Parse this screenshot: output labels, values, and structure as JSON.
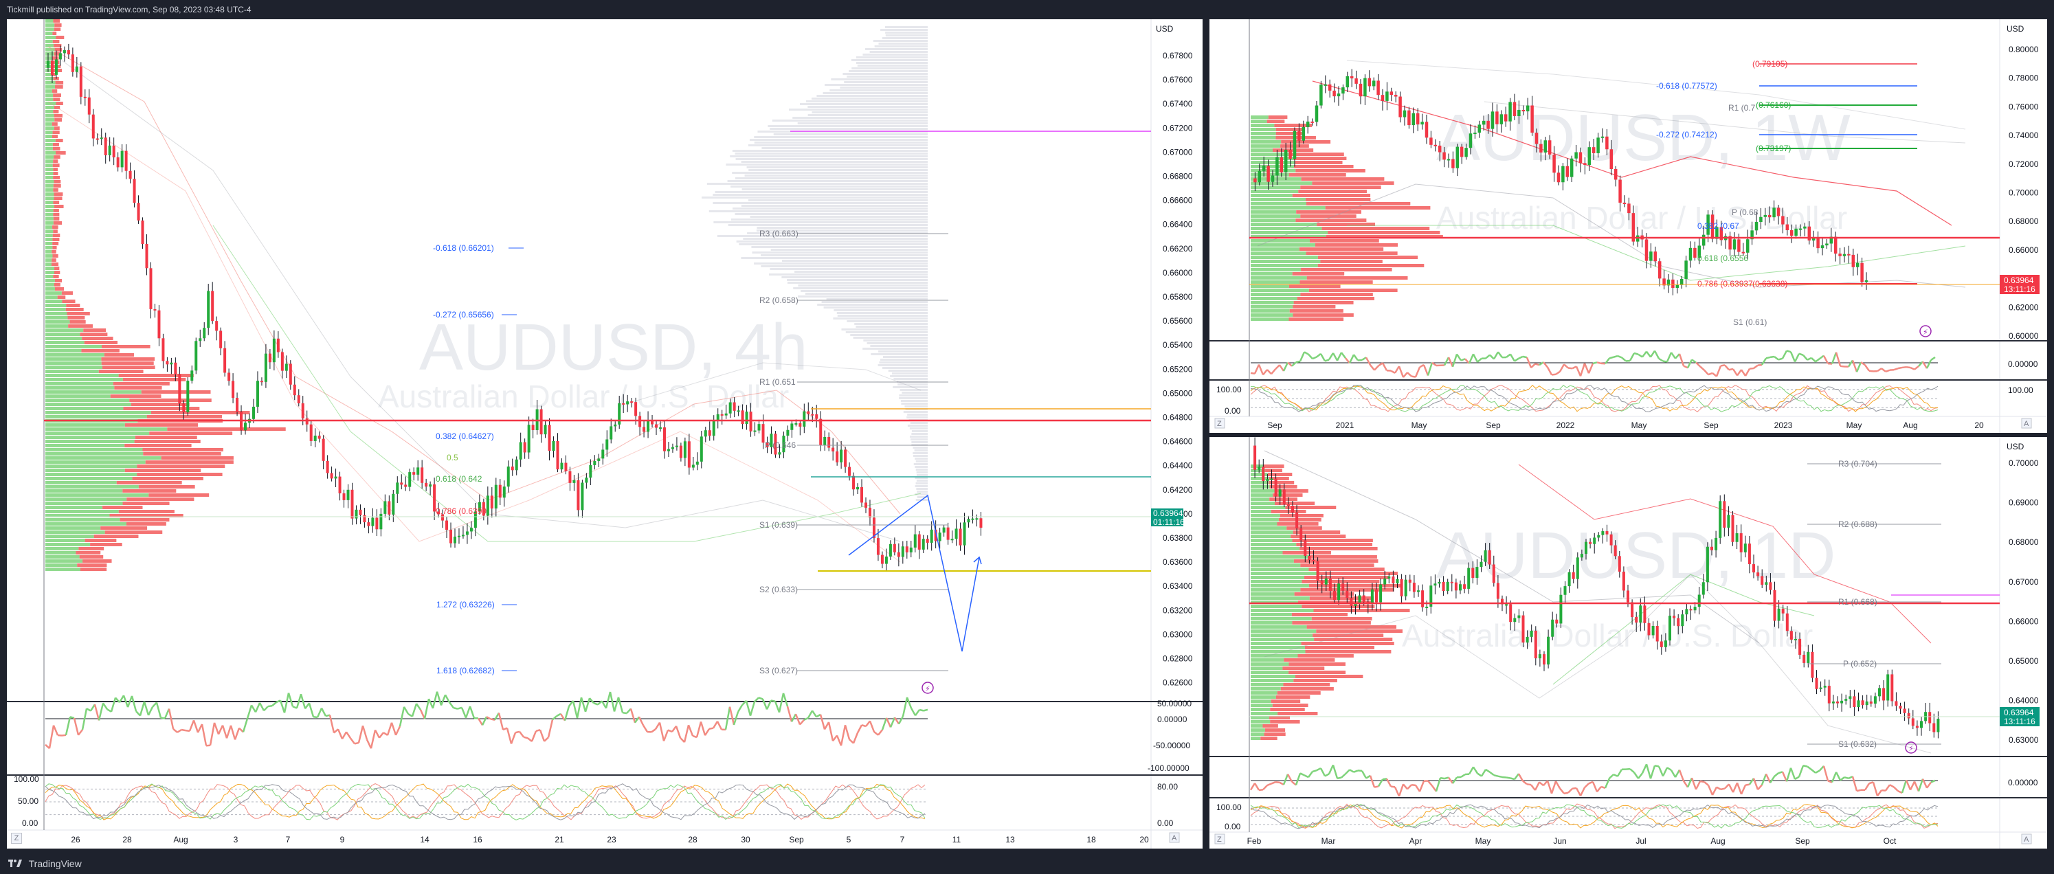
{
  "header": {
    "text": "Tickmill published on TradingView.com, Sep 08, 2023 03:48 UTC-4"
  },
  "footer": {
    "brand": "TradingView"
  },
  "colors": {
    "bull": "#089981",
    "bullBright": "#22ab3a",
    "bear": "#f23645",
    "profileGreen": "#7ed37a",
    "profileRed": "#f25a5a",
    "fibBlue": "#2962ff",
    "pivotGray": "#9598a1",
    "magenta": "#e040fb",
    "orange": "#f5a623"
  },
  "main": {
    "currency": "USD",
    "watermark": {
      "symbol": "AUDUSD, 4h",
      "name": "Australian Dollar / U.S. Dollar"
    },
    "price_ticks": [
      "0.67800",
      "0.67600",
      "0.67400",
      "0.67200",
      "0.67000",
      "0.66800",
      "0.66600",
      "0.66400",
      "0.66200",
      "0.66000",
      "0.65800",
      "0.65600",
      "0.65400",
      "0.65200",
      "0.65000",
      "0.64800",
      "0.64600",
      "0.64400",
      "0.64200",
      "0.64000",
      "0.63800",
      "0.63600",
      "0.63400",
      "0.63200",
      "0.63000",
      "0.62800",
      "0.62600"
    ],
    "price_label": {
      "value": "0.63964",
      "countdown": "01:11:16"
    },
    "fib_labels": [
      "-0.618 (0.66201)",
      "-0.272 (0.65656)",
      "1.272 (0.63226)",
      "1.618 (0.62682)",
      "0.382 (0.64627)",
      "0.5",
      "0.618 (0.642",
      "0.786 (0.6399"
    ],
    "pivot_labels": [
      "R3 (0.663)",
      "R2 (0.658)",
      "R1 (0.651",
      "P (0.646",
      "S1 (0.639)",
      "S2 (0.633)",
      "S3 (0.627)"
    ],
    "osc_ticks": [
      "50.00000",
      "0.00000",
      "-50.00000",
      "-100.00000"
    ],
    "stoch_ticks": [
      "100.00",
      "50.00",
      "0.00"
    ],
    "stoch_right_ticks": [
      "80.00",
      "0.00"
    ],
    "x_ticks": [
      "26",
      "28",
      "Aug",
      "3",
      "7",
      "9",
      "14",
      "16",
      "21",
      "23",
      "28",
      "30",
      "Sep",
      "5",
      "7",
      "11",
      "13",
      "18",
      "20"
    ],
    "corner_left": "Z",
    "corner_right": "A"
  },
  "weekly": {
    "currency": "USD",
    "watermark": {
      "symbol": "AUDUSD, 1W",
      "name": "Australian Dollar / U.S. Dollar"
    },
    "price_ticks": [
      "0.80000",
      "0.78000",
      "0.76000",
      "0.74000",
      "0.72000",
      "0.70000",
      "0.68000",
      "0.66000",
      "0.64000",
      "0.62000",
      "0.60000"
    ],
    "price_label": {
      "value": "0.63964",
      "countdown": "13:11:16"
    },
    "fib_labels": [
      "(0.79105)",
      "-0.618 (0.77572)",
      "(0.76160)",
      "-0.272 (0.74212)",
      "(0.73197)",
      "0.618 (0.6556",
      "0.786 (0.63937",
      "(0.63638)",
      "0.382 (0.67",
      "P (0.68"
    ],
    "pivot_labels": [
      "R1 (0.7",
      "S1 (0.61)"
    ],
    "osc_ticks": [
      "0.00000"
    ],
    "stoch_ticks": [
      "100.00",
      "0.00"
    ],
    "x_ticks": [
      "Sep",
      "2021",
      "May",
      "Sep",
      "2022",
      "May",
      "Sep",
      "2023",
      "May",
      "Aug",
      "20"
    ],
    "corner_left": "Z",
    "corner_right": "A"
  },
  "daily": {
    "currency": "USD",
    "watermark": {
      "symbol": "AUDUSD, 1D",
      "name": "Australian Dollar / U.S. Dollar"
    },
    "price_ticks": [
      "0.70000",
      "0.69000",
      "0.68000",
      "0.67000",
      "0.66000",
      "0.65000",
      "0.64000",
      "0.63000"
    ],
    "price_label": {
      "value": "0.63964",
      "countdown": "13:11:16"
    },
    "pivot_labels": [
      "R3 (0.704)",
      "R2 (0.688)",
      "R1 (0.668)",
      "P (0.652)",
      "S1 (0.632)"
    ],
    "osc_ticks": [
      "0.00000"
    ],
    "stoch_ticks": [
      "100.00",
      "0.00"
    ],
    "x_ticks": [
      "Feb",
      "Mar",
      "Apr",
      "May",
      "Jun",
      "Jul",
      "Aug",
      "Sep",
      "Oct"
    ],
    "corner_left": "Z",
    "corner_right": "A"
  }
}
